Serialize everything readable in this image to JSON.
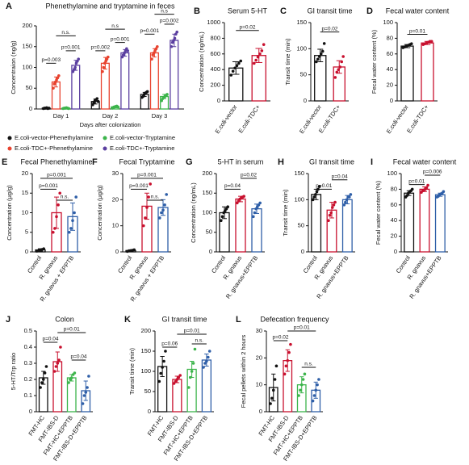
{
  "chart_data": [
    {
      "type": "bar",
      "panel": "A",
      "title": "Phenethylamine and tryptamine in feces",
      "ylabel": "Concentraion (ng/g)",
      "xlabel": "Days after colonization",
      "categories": [
        "Day 1",
        "Day 2",
        "Day 3"
      ],
      "ylim": [
        0,
        200
      ],
      "yticks": [
        0,
        50,
        100,
        150,
        200
      ],
      "series": [
        {
          "name": "E.coli-vector-Phenethylamine",
          "color": "#111111",
          "values": [
            2,
            18,
            35
          ],
          "errors": [
            1,
            6,
            5
          ],
          "points": [
            [
              1,
              2,
              2,
              3,
              1,
              2
            ],
            [
              10,
              15,
              20,
              22,
              25,
              18
            ],
            [
              28,
              30,
              35,
              38,
              40,
              42
            ]
          ]
        },
        {
          "name": "E.coli-TDC+-Phenethylamine",
          "color": "#e8432f",
          "values": [
            65,
            110,
            135
          ],
          "errors": [
            12,
            14,
            10
          ],
          "points": [
            [
              50,
              60,
              65,
              70,
              75,
              80
            ],
            [
              90,
              100,
              110,
              115,
              120,
              125
            ],
            [
              120,
              130,
              135,
              140,
              145,
              150
            ]
          ]
        },
        {
          "name": "E.coli-vector-Tryptamine",
          "color": "#3cb44b",
          "values": [
            2,
            5,
            30
          ],
          "errors": [
            1,
            2,
            5
          ],
          "points": [
            [
              1,
              2,
              2,
              3,
              2,
              1
            ],
            [
              2,
              4,
              5,
              6,
              7,
              5
            ],
            [
              20,
              25,
              28,
              30,
              33,
              35
            ]
          ]
        },
        {
          "name": "E.coli-TDC+-Tryptamine",
          "color": "#5b3fa0",
          "values": [
            105,
            135,
            165
          ],
          "errors": [
            12,
            8,
            15
          ],
          "points": [
            [
              90,
              95,
              100,
              110,
              115,
              120
            ],
            [
              125,
              130,
              135,
              140,
              145,
              140
            ],
            [
              150,
              160,
              165,
              170,
              180,
              185
            ]
          ]
        }
      ],
      "annotations": [
        "p=0.003",
        "p=0.001",
        "n.s.",
        "p=0.002",
        "p=0.001",
        "n.s",
        "p=0.001",
        "p=0.002",
        "n.s"
      ]
    },
    {
      "type": "bar",
      "panel": "B",
      "title": "Serum 5-HT",
      "ylabel": "Concentration (ng/mL)",
      "categories": [
        "E.coli-vector",
        "E.coli-TDC+"
      ],
      "colors": [
        "#111111",
        "#c8102e"
      ],
      "values": [
        420,
        580
      ],
      "errors": [
        80,
        90
      ],
      "points": [
        [
          330,
          380,
          420,
          450,
          480,
          510
        ],
        [
          480,
          520,
          560,
          600,
          640,
          720
        ]
      ],
      "ylim": [
        0,
        1000
      ],
      "yticks": [
        0,
        200,
        400,
        600,
        800,
        1000
      ],
      "annotations": [
        "p=0.02"
      ]
    },
    {
      "type": "bar",
      "panel": "C",
      "title": "GI transit time",
      "ylabel": "Transit time (min)",
      "categories": [
        "E.coli-vector",
        "E.coli-TDC+"
      ],
      "colors": [
        "#111111",
        "#c8102e"
      ],
      "values": [
        87,
        65
      ],
      "errors": [
        12,
        12
      ],
      "points": [
        [
          75,
          80,
          85,
          90,
          95,
          110
        ],
        [
          45,
          55,
          60,
          65,
          75,
          85
        ]
      ],
      "ylim": [
        0,
        150
      ],
      "yticks": [
        0,
        50,
        100,
        150
      ],
      "annotations": [
        "p=0.02"
      ]
    },
    {
      "type": "bar",
      "panel": "D",
      "title": "Fecal water content",
      "ylabel": "Fecal water content (%)",
      "categories": [
        "E.coli-vector",
        "E.coli-TDC+"
      ],
      "colors": [
        "#111111",
        "#c8102e"
      ],
      "values": [
        70,
        74
      ],
      "errors": [
        2,
        2
      ],
      "points": [
        [
          68,
          69,
          70,
          71,
          72,
          73
        ],
        [
          72,
          73,
          74,
          75,
          76,
          76
        ]
      ],
      "ylim": [
        0,
        100
      ],
      "yticks": [
        0,
        20,
        40,
        60,
        80,
        100
      ],
      "annotations": [
        "p=0.01"
      ]
    },
    {
      "type": "bar",
      "panel": "E",
      "title": "Fecal Phenethylamine",
      "ylabel": "Concentration (μg/g)",
      "categories": [
        "Control",
        "R. gnavus",
        "R. gnavus + EPPTB"
      ],
      "colors": [
        "#111111",
        "#c8102e",
        "#2f5fa8"
      ],
      "values": [
        0.5,
        10,
        9
      ],
      "errors": [
        0.3,
        4,
        3.5
      ],
      "points": [
        [
          0.2,
          0.4,
          0.5,
          0.6,
          0.8
        ],
        [
          5,
          6,
          9,
          12,
          15
        ],
        [
          5,
          6,
          8,
          10,
          14
        ]
      ],
      "ylim": [
        0,
        20
      ],
      "yticks": [
        0,
        5,
        10,
        15,
        20
      ],
      "annotations": [
        "p=0.001",
        "p=0.001",
        "n.s."
      ]
    },
    {
      "type": "bar",
      "panel": "F",
      "title": "Fecal Tryptamine",
      "ylabel": "Concentration (μg/g)",
      "categories": [
        "Control",
        "R. gnavus",
        "R. gnavus + EPPTB"
      ],
      "colors": [
        "#111111",
        "#c8102e",
        "#2f5fa8"
      ],
      "values": [
        0.5,
        17.5,
        17
      ],
      "errors": [
        0.3,
        5,
        3
      ],
      "points": [
        [
          0.2,
          0.4,
          0.5,
          0.6,
          0.8
        ],
        [
          10,
          13,
          17,
          21,
          26
        ],
        [
          13,
          15,
          16,
          18,
          22
        ]
      ],
      "ylim": [
        0,
        30
      ],
      "yticks": [
        0,
        10,
        20,
        30
      ],
      "annotations": [
        "p=0.001",
        "p=0.001",
        "n.s."
      ]
    },
    {
      "type": "bar",
      "panel": "G",
      "title": "5-HT in serum",
      "ylabel": "Concentration (ng/mL)",
      "categories": [
        "Control",
        "R. gnavus",
        "R. gnavus+EPPTB"
      ],
      "colors": [
        "#111111",
        "#c8102e",
        "#2f5fa8"
      ],
      "values": [
        100,
        135,
        110
      ],
      "errors": [
        15,
        7,
        12
      ],
      "points": [
        [
          80,
          90,
          100,
          105,
          110,
          115
        ],
        [
          125,
          130,
          135,
          138,
          140,
          142
        ],
        [
          90,
          100,
          110,
          115,
          120,
          125
        ]
      ],
      "ylim": [
        0,
        200
      ],
      "yticks": [
        0,
        50,
        100,
        150,
        200
      ],
      "annotations": [
        "p=0.04",
        "p=0.02"
      ]
    },
    {
      "type": "bar",
      "panel": "H",
      "title": "GI transit time",
      "ylabel": "Transit time (min)",
      "categories": [
        "Control",
        "R. gnavus",
        "R. gnavus+EPPTB"
      ],
      "colors": [
        "#111111",
        "#c8102e",
        "#2f5fa8"
      ],
      "values": [
        110,
        80,
        100
      ],
      "errors": [
        10,
        15,
        8
      ],
      "points": [
        [
          100,
          105,
          110,
          115,
          120,
          125
        ],
        [
          60,
          70,
          75,
          85,
          90,
          95
        ],
        [
          90,
          95,
          100,
          105,
          105,
          110
        ]
      ],
      "ylim": [
        0,
        150
      ],
      "yticks": [
        0,
        50,
        100,
        150
      ],
      "annotations": [
        "p=0.01",
        "p=0.04"
      ]
    },
    {
      "type": "bar",
      "panel": "I",
      "title": "Fecal water content",
      "ylabel": "Fecal water content (%)",
      "categories": [
        "Control",
        "R. gnavus",
        "R. gnavus+EPPTB"
      ],
      "colors": [
        "#111111",
        "#c8102e",
        "#2f5fa8"
      ],
      "values": [
        75,
        80,
        73
      ],
      "errors": [
        3,
        3,
        2
      ],
      "points": [
        [
          70,
          72,
          75,
          77,
          78,
          80
        ],
        [
          76,
          78,
          79,
          80,
          82,
          85
        ],
        [
          70,
          71,
          73,
          74,
          75,
          77
        ]
      ],
      "ylim": [
        0,
        100
      ],
      "yticks": [
        0,
        20,
        40,
        60,
        80,
        100
      ],
      "annotations": [
        "p=0.01",
        "p=0.006"
      ]
    },
    {
      "type": "bar",
      "panel": "J",
      "title": "Colon",
      "ylabel": "5-HT/Trp ratio",
      "categories": [
        "FMT-HC",
        "FMT-IBS-D",
        "FMT-HC+EPPTB",
        "FMT-IBS-D+EPPTB"
      ],
      "colors": [
        "#111111",
        "#c8102e",
        "#3cb44b",
        "#2f5fa8"
      ],
      "values": [
        0.21,
        0.31,
        0.21,
        0.13
      ],
      "errors": [
        0.04,
        0.06,
        0.02,
        0.06
      ],
      "points": [
        [
          0.15,
          0.18,
          0.2,
          0.24,
          0.28
        ],
        [
          0.25,
          0.28,
          0.3,
          0.32,
          0.4
        ],
        [
          0.18,
          0.2,
          0.21,
          0.23,
          0.24
        ],
        [
          0.05,
          0.1,
          0.12,
          0.15,
          0.22
        ]
      ],
      "ylim": [
        0,
        0.5
      ],
      "yticks": [
        0,
        0.1,
        0.2,
        0.3,
        0.4,
        0.5
      ],
      "annotations": [
        "p=0.04",
        "p=0.01",
        "p=0.04"
      ]
    },
    {
      "type": "bar",
      "panel": "K",
      "title": "GI transit time",
      "ylabel": "Transit time (min)",
      "categories": [
        "FMT-HC",
        "FMT-IBS-D",
        "FMT-HC+EPPTB",
        "FMT-IBS-D+EPPTB"
      ],
      "colors": [
        "#111111",
        "#c8102e",
        "#3cb44b",
        "#2f5fa8"
      ],
      "values": [
        112,
        80,
        105,
        128
      ],
      "errors": [
        25,
        8,
        20,
        15
      ],
      "points": [
        [
          75,
          95,
          110,
          125,
          150
        ],
        [
          70,
          75,
          80,
          85,
          90
        ],
        [
          60,
          85,
          100,
          120,
          155
        ],
        [
          110,
          120,
          125,
          135,
          150
        ]
      ],
      "ylim": [
        0,
        200
      ],
      "yticks": [
        0,
        50,
        100,
        150,
        200
      ],
      "annotations": [
        "p=0.06",
        "p=0.01",
        "n.s."
      ]
    },
    {
      "type": "bar",
      "panel": "L",
      "title": "Defecation frequency",
      "ylabel": "Fecal pellets within 2 hours",
      "categories": [
        "FMT-HC",
        "FMT-IBS-D",
        "FMT-HC+EPPTB",
        "FMT-IBS-D+EPPTB"
      ],
      "colors": [
        "#111111",
        "#c8102e",
        "#3cb44b",
        "#2f5fa8"
      ],
      "values": [
        9,
        19,
        10,
        8
      ],
      "errors": [
        5,
        4,
        3,
        3
      ],
      "points": [
        [
          3,
          5,
          8,
          12,
          17
        ],
        [
          14,
          17,
          19,
          22,
          25
        ],
        [
          6,
          8,
          10,
          12,
          14
        ],
        [
          4,
          6,
          8,
          10,
          12
        ]
      ],
      "ylim": [
        0,
        30
      ],
      "yticks": [
        0,
        10,
        20,
        30
      ],
      "annotations": [
        "p=0.02",
        "p=0.01",
        "n.s."
      ]
    }
  ]
}
